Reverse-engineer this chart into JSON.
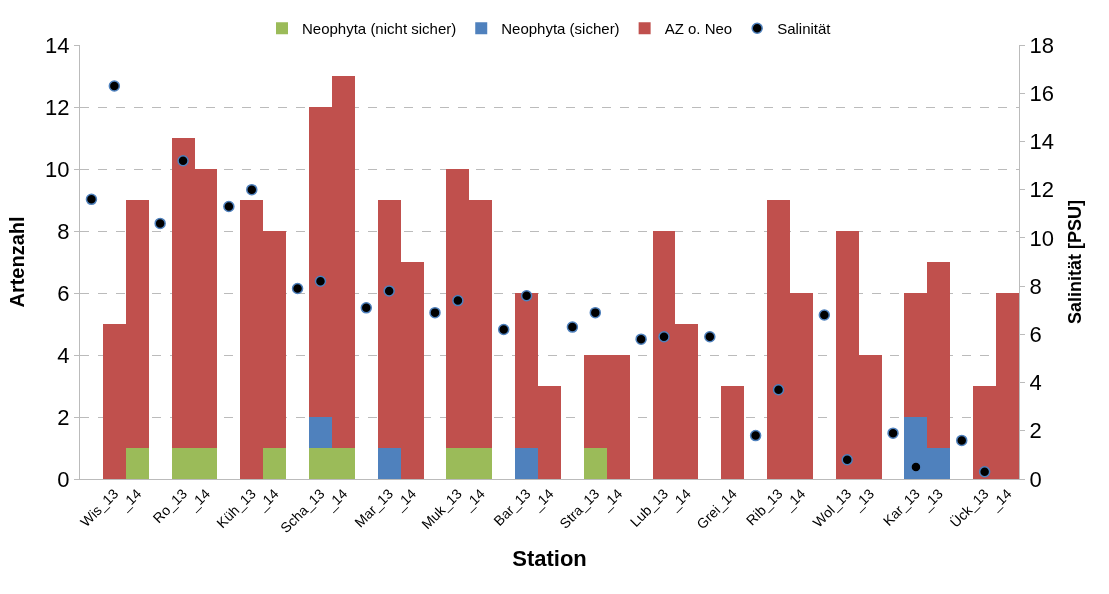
{
  "chart_data": {
    "type": "bar",
    "stacked": true,
    "xlabel": "Station",
    "ylabel": "Artenzahl",
    "y2label": "Salinität [PSU]",
    "categories": [
      null,
      "Wis_13",
      "_14",
      null,
      "Ro_13",
      "_14",
      null,
      "Küh_13",
      "_14",
      null,
      "Scha_13",
      "_14",
      null,
      "Mar_13",
      "_14",
      null,
      "Muk_13",
      "_14",
      null,
      "Bar_13",
      "_14",
      null,
      "Stra_13",
      "_14",
      null,
      "Lub_13",
      "_14",
      null,
      "Grei_14",
      null,
      "Rib_13",
      "_14",
      null,
      "Wol_13",
      "_13",
      null,
      "Kar_13",
      "_13",
      null,
      "Ück_13",
      "_14"
    ],
    "series": [
      {
        "name": "Neophyta (nicht sicher)",
        "color": "#9bbb59",
        "values": [
          null,
          0,
          1,
          null,
          1,
          1,
          null,
          0,
          1,
          null,
          1,
          1,
          null,
          0,
          0,
          null,
          1,
          1,
          null,
          0,
          0,
          null,
          1,
          0,
          null,
          0,
          0,
          null,
          0,
          null,
          0,
          0,
          null,
          0,
          0,
          null,
          0,
          0,
          null,
          0,
          0
        ]
      },
      {
        "name": "Neophyta (sicher)",
        "color": "#4f81bd",
        "values": [
          null,
          0,
          0,
          null,
          0,
          0,
          null,
          0,
          0,
          null,
          1,
          0,
          null,
          1,
          0,
          null,
          0,
          0,
          null,
          1,
          0,
          null,
          0,
          0,
          null,
          0,
          0,
          null,
          0,
          null,
          0,
          0,
          null,
          0,
          0,
          null,
          2,
          1,
          null,
          0,
          0
        ]
      },
      {
        "name": "AZ o. Neo",
        "color": "#c0504d",
        "values": [
          null,
          5,
          8,
          null,
          10,
          9,
          null,
          9,
          7,
          null,
          10,
          12,
          null,
          8,
          7,
          null,
          9,
          8,
          null,
          5,
          3,
          null,
          3,
          4,
          null,
          8,
          5,
          null,
          3,
          null,
          9,
          6,
          null,
          8,
          4,
          null,
          4,
          6,
          null,
          3,
          6
        ]
      },
      {
        "name": "Salinität",
        "type": "scatter",
        "axis": "y2",
        "color": "#000000",
        "marker": "circle",
        "values": [
          11.6,
          16.3,
          null,
          10.6,
          13.2,
          null,
          11.3,
          12.0,
          null,
          7.9,
          8.2,
          null,
          7.1,
          7.8,
          null,
          6.9,
          7.4,
          null,
          6.2,
          7.6,
          null,
          6.3,
          6.9,
          null,
          5.8,
          5.9,
          null,
          5.9,
          null,
          1.8,
          3.7,
          null,
          6.8,
          0.8,
          null,
          1.9,
          0.5,
          null,
          1.6,
          0.3,
          null
        ]
      }
    ],
    "ylim": [
      0,
      14
    ],
    "yticks": [
      0,
      2,
      4,
      6,
      8,
      10,
      12,
      14
    ],
    "y2lim": [
      0,
      18
    ],
    "y2ticks": [
      0,
      2,
      4,
      6,
      8,
      10,
      12,
      14,
      16,
      18
    ],
    "grid": "y",
    "legend": "top"
  }
}
